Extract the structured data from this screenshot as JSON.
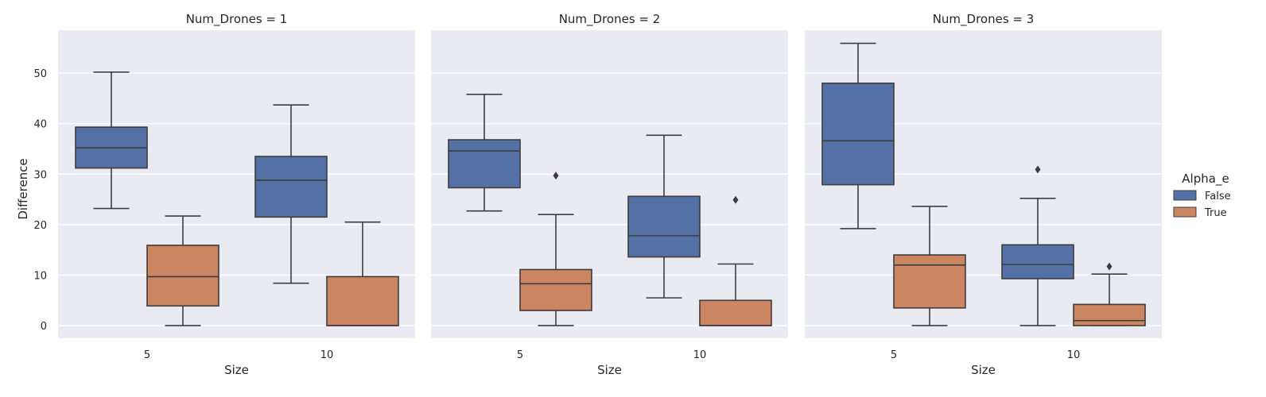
{
  "chart_data": {
    "type": "box",
    "xlabel": "Size",
    "ylabel": "Difference",
    "ylim": [
      -2.5,
      58.5
    ],
    "yticks": [
      0,
      10,
      20,
      30,
      40,
      50
    ],
    "categories": [
      "5",
      "10"
    ],
    "grid": true,
    "legend": {
      "title": "Alpha_e",
      "placement": "right",
      "entries": [
        {
          "label": "False",
          "color": "#5471a5"
        },
        {
          "label": "True",
          "color": "#cb8560"
        }
      ]
    },
    "panels": [
      {
        "title": "Num_Drones = 1",
        "boxes": [
          {
            "category": "5",
            "hue": "False",
            "whisker_low": 23.2,
            "q1": 31.2,
            "median": 35.2,
            "q3": 39.3,
            "whisker_high": 50.2,
            "outliers": []
          },
          {
            "category": "5",
            "hue": "True",
            "whisker_low": 0.0,
            "q1": 3.9,
            "median": 9.7,
            "q3": 15.9,
            "whisker_high": 21.7,
            "outliers": []
          },
          {
            "category": "10",
            "hue": "False",
            "whisker_low": 8.4,
            "q1": 21.5,
            "median": 28.8,
            "q3": 33.5,
            "whisker_high": 43.7,
            "outliers": []
          },
          {
            "category": "10",
            "hue": "True",
            "whisker_low": 0.0,
            "q1": 0.0,
            "median": 0.0,
            "q3": 9.7,
            "whisker_high": 20.5,
            "outliers": []
          }
        ]
      },
      {
        "title": "Num_Drones = 2",
        "boxes": [
          {
            "category": "5",
            "hue": "False",
            "whisker_low": 22.7,
            "q1": 27.3,
            "median": 34.6,
            "q3": 36.8,
            "whisker_high": 45.8,
            "outliers": []
          },
          {
            "category": "5",
            "hue": "True",
            "whisker_low": 0.0,
            "q1": 3.0,
            "median": 8.3,
            "q3": 11.1,
            "whisker_high": 22.0,
            "outliers": [
              29.7
            ]
          },
          {
            "category": "10",
            "hue": "False",
            "whisker_low": 5.5,
            "q1": 13.6,
            "median": 17.8,
            "q3": 25.6,
            "whisker_high": 37.7,
            "outliers": []
          },
          {
            "category": "10",
            "hue": "True",
            "whisker_low": 0.0,
            "q1": 0.0,
            "median": 0.0,
            "q3": 5.0,
            "whisker_high": 12.2,
            "outliers": [
              24.9
            ]
          }
        ]
      },
      {
        "title": "Num_Drones = 3",
        "boxes": [
          {
            "category": "5",
            "hue": "False",
            "whisker_low": 19.2,
            "q1": 27.9,
            "median": 36.6,
            "q3": 48.0,
            "whisker_high": 55.9,
            "outliers": []
          },
          {
            "category": "5",
            "hue": "True",
            "whisker_low": 0.0,
            "q1": 3.5,
            "median": 12.0,
            "q3": 14.0,
            "whisker_high": 23.6,
            "outliers": []
          },
          {
            "category": "10",
            "hue": "False",
            "whisker_low": 0.0,
            "q1": 9.3,
            "median": 12.1,
            "q3": 16.0,
            "whisker_high": 25.2,
            "outliers": [
              30.9
            ]
          },
          {
            "category": "10",
            "hue": "True",
            "whisker_low": 0.0,
            "q1": 0.0,
            "median": 1.0,
            "q3": 4.2,
            "whisker_high": 10.2,
            "outliers": [
              11.7
            ]
          }
        ]
      }
    ]
  }
}
